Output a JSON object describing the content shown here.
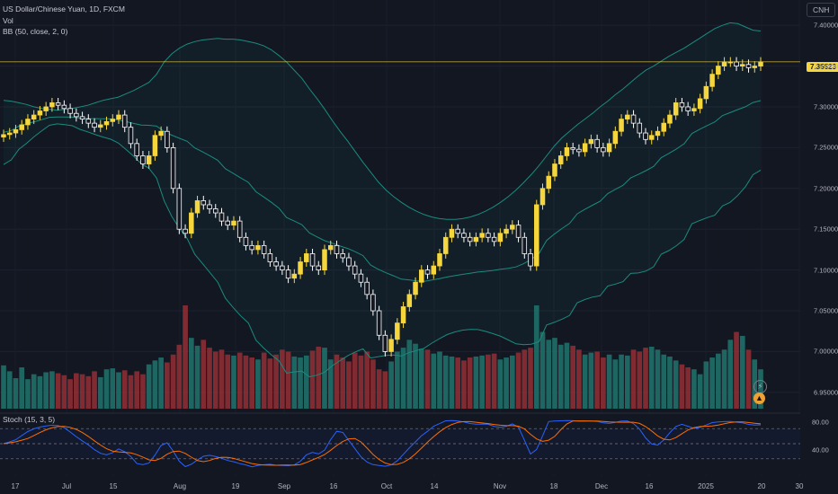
{
  "legend": {
    "symbol": "US Dollar/Chinese Yuan, 1D, FXCM",
    "vol": "Vol",
    "bb": "BB (50, close, 2, 0)"
  },
  "currency_badge": "CNH",
  "current_price": "7.35523",
  "stoch_legend": "Stoch (15, 3, 5)",
  "colors": {
    "up": "#f5d63c",
    "down": "#ffffff",
    "vol_up": "#1f6f68",
    "vol_down": "#8c2e33",
    "band": "#1a8b7e",
    "k_line": "#2962ff",
    "d_line": "#ff6d00",
    "price_line": "#f5d63c"
  },
  "chart_data": [
    {
      "type": "candlestick",
      "title": "US Dollar/Chinese Yuan, 1D, FXCM",
      "ylim": [
        6.93,
        7.42
      ],
      "y_ticks": [
        "7.40000",
        "7.35000",
        "7.30000",
        "7.25000",
        "7.20000",
        "7.15000",
        "7.10000",
        "7.05000",
        "7.00000",
        "6.95000"
      ],
      "x_ticks": [
        "17",
        "Jul",
        "15",
        "Aug",
        "19",
        "Sep",
        "16",
        "Oct",
        "14",
        "Nov",
        "18",
        "Dec",
        "16",
        "2025",
        "20",
        "30"
      ],
      "close_series": [
        7.266,
        7.268,
        7.272,
        7.278,
        7.285,
        7.29,
        7.295,
        7.3,
        7.305,
        7.302,
        7.298,
        7.292,
        7.288,
        7.285,
        7.28,
        7.275,
        7.278,
        7.282,
        7.285,
        7.29,
        7.275,
        7.255,
        7.24,
        7.23,
        7.24,
        7.265,
        7.27,
        7.25,
        7.2,
        7.15,
        7.145,
        7.17,
        7.185,
        7.18,
        7.175,
        7.17,
        7.16,
        7.155,
        7.16,
        7.14,
        7.13,
        7.125,
        7.13,
        7.12,
        7.11,
        7.105,
        7.1,
        7.09,
        7.095,
        7.11,
        7.12,
        7.105,
        7.1,
        7.125,
        7.13,
        7.12,
        7.115,
        7.105,
        7.095,
        7.085,
        7.07,
        7.05,
        7.02,
        7.0,
        7.015,
        7.035,
        7.055,
        7.07,
        7.085,
        7.1,
        7.095,
        7.105,
        7.12,
        7.14,
        7.15,
        7.145,
        7.14,
        7.135,
        7.14,
        7.145,
        7.14,
        7.135,
        7.145,
        7.15,
        7.155,
        7.14,
        7.12,
        7.105,
        7.18,
        7.2,
        7.215,
        7.23,
        7.24,
        7.25,
        7.248,
        7.245,
        7.255,
        7.26,
        7.25,
        7.245,
        7.255,
        7.27,
        7.285,
        7.29,
        7.28,
        7.268,
        7.26,
        7.265,
        7.27,
        7.28,
        7.29,
        7.305,
        7.3,
        7.295,
        7.298,
        7.31,
        7.325,
        7.34,
        7.35,
        7.355,
        7.355,
        7.35,
        7.352,
        7.348,
        7.35,
        7.355
      ],
      "volume": [
        44,
        38,
        31,
        42,
        30,
        35,
        33,
        37,
        38,
        36,
        34,
        30,
        36,
        35,
        33,
        38,
        32,
        40,
        41,
        37,
        39,
        34,
        38,
        35,
        45,
        49,
        52,
        47,
        55,
        65,
        105,
        72,
        64,
        70,
        62,
        58,
        60,
        55,
        54,
        57,
        54,
        52,
        50,
        57,
        51,
        55,
        60,
        58,
        53,
        52,
        54,
        59,
        63,
        62,
        50,
        55,
        52,
        48,
        57,
        54,
        58,
        50,
        40,
        38,
        48,
        58,
        62,
        70,
        66,
        61,
        60,
        56,
        58,
        54,
        53,
        52,
        49,
        52,
        53,
        54,
        55,
        56,
        50,
        52,
        54,
        57,
        60,
        62,
        105,
        78,
        70,
        72,
        65,
        67,
        64,
        60,
        55,
        57,
        58,
        52,
        55,
        50,
        55,
        54,
        60,
        58,
        62,
        63,
        60,
        55,
        53,
        49,
        45,
        42,
        40,
        35,
        48,
        52,
        56,
        60,
        70,
        78,
        74,
        60,
        50,
        40
      ],
      "bb_upper": [
        7.308,
        7.307,
        7.305,
        7.303,
        7.3,
        7.298,
        7.297,
        7.296,
        7.297,
        7.298,
        7.3,
        7.302,
        7.305,
        7.308,
        7.31,
        7.312,
        7.316,
        7.32,
        7.325,
        7.33,
        7.34,
        7.355,
        7.365,
        7.372,
        7.377,
        7.38,
        7.382,
        7.383,
        7.384,
        7.383,
        7.383,
        7.382,
        7.38,
        7.378,
        7.375,
        7.37,
        7.363,
        7.355,
        7.345,
        7.335,
        7.322,
        7.31,
        7.297,
        7.283,
        7.27,
        7.258,
        7.245,
        7.232,
        7.22,
        7.208,
        7.198,
        7.19,
        7.183,
        7.177,
        7.172,
        7.168,
        7.165,
        7.163,
        7.162,
        7.162,
        7.163,
        7.165,
        7.168,
        7.172,
        7.177,
        7.183,
        7.19,
        7.198,
        7.207,
        7.217,
        7.228,
        7.24,
        7.252,
        7.262,
        7.27,
        7.278,
        7.285,
        7.292,
        7.3,
        7.307,
        7.315,
        7.322,
        7.33,
        7.338,
        7.345,
        7.35,
        7.356,
        7.362,
        7.367,
        7.372,
        7.378,
        7.384,
        7.39,
        7.396,
        7.4,
        7.403,
        7.402,
        7.398,
        7.394,
        7.393
      ]
    }
  ]
}
